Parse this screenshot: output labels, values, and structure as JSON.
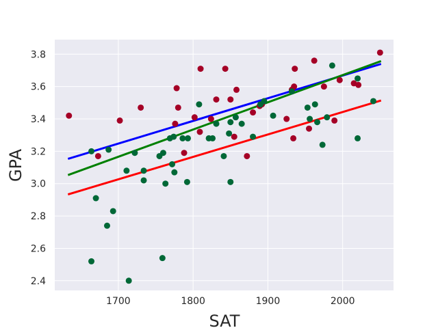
{
  "chart_data": {
    "type": "scatter",
    "title": "",
    "xlabel": "SAT",
    "ylabel": "GPA",
    "xlim": [
      1615,
      2068
    ],
    "ylim": [
      2.34,
      3.89
    ],
    "xticks": [
      1700,
      1800,
      1900,
      2000
    ],
    "yticks": [
      2.4,
      2.6,
      2.8,
      3.0,
      3.2,
      3.4,
      3.6,
      3.8
    ],
    "xtick_labels": [
      "1700",
      "1800",
      "1900",
      "2000"
    ],
    "ytick_labels": [
      "2.4",
      "2.6",
      "2.8",
      "3.0",
      "3.2",
      "3.4",
      "3.6",
      "3.8"
    ],
    "grid": true,
    "background": "#eaeaf2",
    "points": {
      "red": {
        "color": "#a50026",
        "x": [
          1634,
          1673,
          1702,
          1730,
          1776,
          1778,
          1780,
          1788,
          1802,
          1809,
          1810,
          1824,
          1831,
          1843,
          1850,
          1855,
          1858,
          1872,
          1880,
          1889,
          1892,
          1925,
          1932,
          1934,
          1935,
          1936,
          1955,
          1962,
          1975,
          1989,
          1996,
          2015,
          2021,
          2050
        ],
        "y": [
          3.42,
          3.17,
          3.39,
          3.47,
          3.37,
          3.59,
          3.47,
          3.19,
          3.41,
          3.32,
          3.71,
          3.4,
          3.52,
          3.71,
          3.52,
          3.29,
          3.58,
          3.17,
          3.44,
          3.48,
          3.49,
          3.4,
          3.58,
          3.28,
          3.6,
          3.71,
          3.34,
          3.76,
          3.6,
          3.39,
          3.64,
          3.62,
          3.61,
          3.81
        ]
      },
      "green": {
        "color": "#006837",
        "x": [
          1664,
          1664,
          1670,
          1685,
          1687,
          1693,
          1711,
          1714,
          1722,
          1734,
          1734,
          1755,
          1759,
          1760,
          1763,
          1769,
          1772,
          1774,
          1775,
          1786,
          1792,
          1793,
          1808,
          1821,
          1826,
          1831,
          1841,
          1848,
          1850,
          1850,
          1857,
          1865,
          1880,
          1890,
          1895,
          1907,
          1932,
          1953,
          1956,
          1963,
          1966,
          1973,
          1979,
          1986,
          2020,
          2020,
          2041
        ],
        "y": [
          3.2,
          2.52,
          2.91,
          2.74,
          3.21,
          2.83,
          3.08,
          2.4,
          3.19,
          3.08,
          3.02,
          3.17,
          2.54,
          3.19,
          3.0,
          3.28,
          3.12,
          3.29,
          3.07,
          3.28,
          3.01,
          3.28,
          3.49,
          3.28,
          3.28,
          3.37,
          3.17,
          3.31,
          3.38,
          3.01,
          3.41,
          3.37,
          3.29,
          3.49,
          3.51,
          3.42,
          3.57,
          3.47,
          3.4,
          3.49,
          3.38,
          3.24,
          3.41,
          3.73,
          3.28,
          3.65,
          3.51
        ]
      }
    },
    "series": [
      {
        "color": "#0000ff",
        "x": [
          1634,
          2050
        ],
        "y": [
          3.155,
          3.738
        ]
      },
      {
        "color": "#008000",
        "x": [
          1634,
          2050
        ],
        "y": [
          3.055,
          3.755
        ]
      },
      {
        "color": "#ff0000",
        "x": [
          1634,
          2050
        ],
        "y": [
          2.935,
          3.512
        ]
      }
    ]
  }
}
